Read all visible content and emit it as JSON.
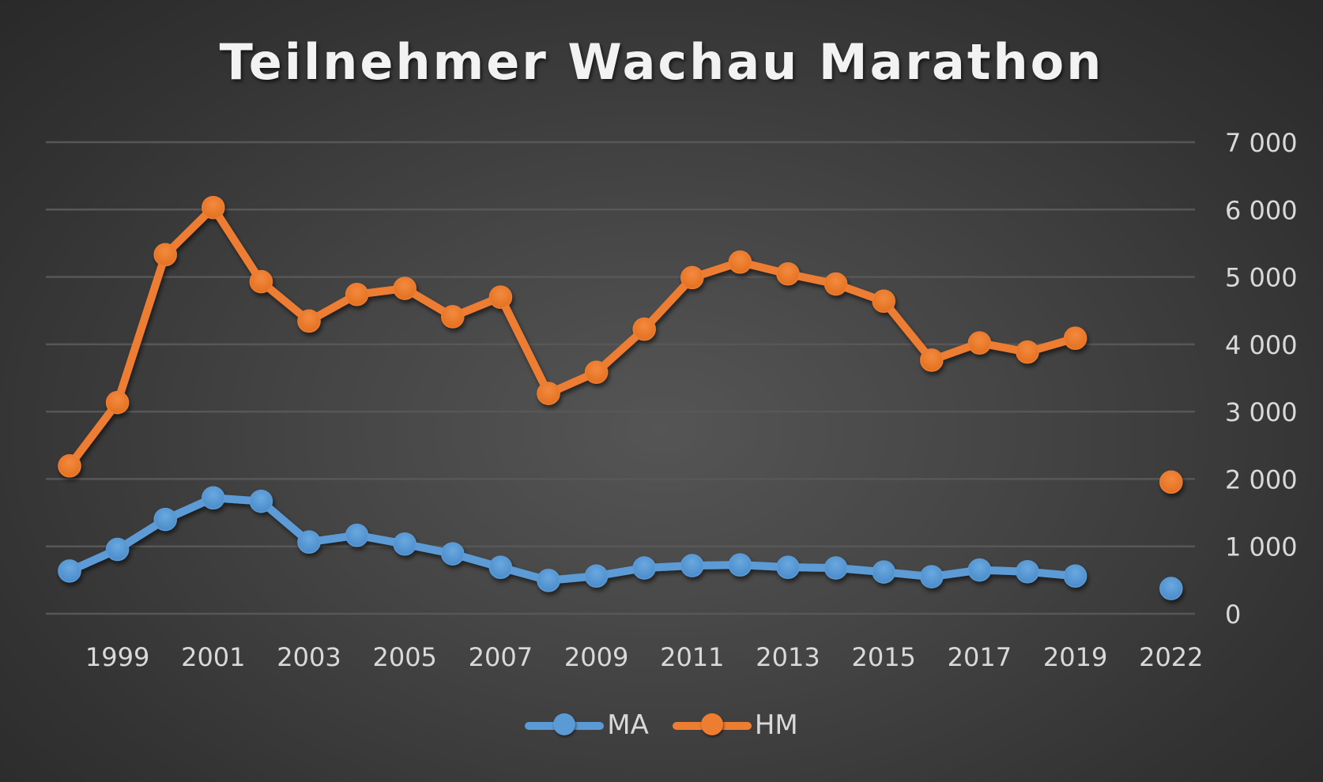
{
  "chart_data": {
    "type": "line",
    "title": "Teilnehmer Wachau Marathon",
    "xlabel": "",
    "ylabel": "",
    "categories": [
      "1998",
      "1999",
      "2000",
      "2001",
      "2002",
      "2003",
      "2004",
      "2005",
      "2006",
      "2007",
      "2008",
      "2009",
      "2010",
      "2011",
      "2012",
      "2013",
      "2014",
      "2015",
      "2016",
      "2017",
      "2018",
      "2019",
      "2021",
      "2022"
    ],
    "x_tick_labels": [
      "1999",
      "2001",
      "2003",
      "2005",
      "2007",
      "2009",
      "2011",
      "2013",
      "2015",
      "2017",
      "2019",
      "2022"
    ],
    "series": [
      {
        "name": "MA",
        "color": "#5b9bd5",
        "values": [
          635,
          955,
          1400,
          1720,
          1670,
          1065,
          1165,
          1035,
          890,
          690,
          495,
          560,
          680,
          715,
          725,
          690,
          680,
          620,
          550,
          650,
          625,
          560,
          null,
          375
        ]
      },
      {
        "name": "HM",
        "color": "#ed7d31",
        "values": [
          2195,
          3135,
          5330,
          6030,
          4930,
          4345,
          4740,
          4830,
          4410,
          4700,
          3270,
          3585,
          4225,
          4990,
          5220,
          5045,
          4895,
          4640,
          3765,
          4020,
          3885,
          4090,
          null,
          1955
        ]
      }
    ],
    "y_axis": {
      "position": "right",
      "min": 0,
      "max": 7000,
      "step": 1000,
      "tick_labels": [
        "0",
        "1 000",
        "2 000",
        "3 000",
        "4 000",
        "5 000",
        "6 000",
        "7 000"
      ]
    },
    "grid": true,
    "legend_position": "bottom"
  },
  "legend": {
    "items": [
      {
        "label": "MA",
        "color": "#5b9bd5"
      },
      {
        "label": "HM",
        "color": "#ed7d31"
      }
    ]
  },
  "colors": {
    "gridline": "#575757",
    "tick_text": "#d9d9d9",
    "title_text": "#f2f2f2"
  }
}
